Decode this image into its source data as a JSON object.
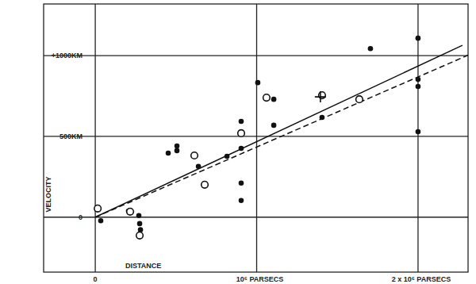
{
  "chart_data": {
    "type": "scatter",
    "xlabel": "DISTANCE",
    "ylabel": "VELOCITY",
    "xlim": [
      -320000,
      2310000
    ],
    "ylim": [
      -340,
      1320
    ],
    "xticks": [
      0,
      {
        "value": 1000000,
        "label": "10⁶ PARSECS"
      },
      {
        "value": 2000000,
        "label": "2 x 10⁶ PARSECS"
      }
    ],
    "yticks": [
      0,
      {
        "value": 500,
        "label": "500KM"
      },
      {
        "value": 1000,
        "label": "+1000KM"
      }
    ],
    "grid": true,
    "series": [
      {
        "type": "scatter",
        "marker": "filled",
        "color": "#111111",
        "x": [
          34000,
          206000,
          270000,
          275000,
          280000,
          452000,
          506000,
          506000,
          639000,
          816000,
          904000,
          904000,
          904000,
          904000,
          1007000,
          1106000,
          1106000,
          1405000,
          1705000,
          2000000,
          2000000,
          2000000,
          2000000
        ],
        "values": [
          -22,
          38,
          10,
          -40,
          -78,
          397,
          441,
          412,
          314,
          377,
          593,
          426,
          211,
          103,
          833,
          730,
          569,
          618,
          1044,
          1108,
          853,
          809,
          529
        ]
      },
      {
        "type": "scatter",
        "marker": "open",
        "color": "#111111",
        "x": [
          15000,
          216000,
          275000,
          614000,
          678000,
          904000,
          1061000,
          1405000,
          1636000
        ],
        "values": [
          54,
          34,
          -113,
          382,
          201,
          520,
          740,
          755,
          730
        ]
      },
      {
        "type": "scatter",
        "marker": "cross",
        "color": "#111111",
        "x": [
          1395000
        ],
        "values": [
          745
        ]
      },
      {
        "type": "line",
        "line_style": "solid",
        "color": "#111111",
        "x": [
          0,
          2275000
        ],
        "values": [
          0,
          1064
        ]
      },
      {
        "type": "line",
        "line_style": "dashed",
        "color": "#111111",
        "x": [
          0,
          2310000
        ],
        "values": [
          0,
          1003
        ]
      }
    ]
  }
}
